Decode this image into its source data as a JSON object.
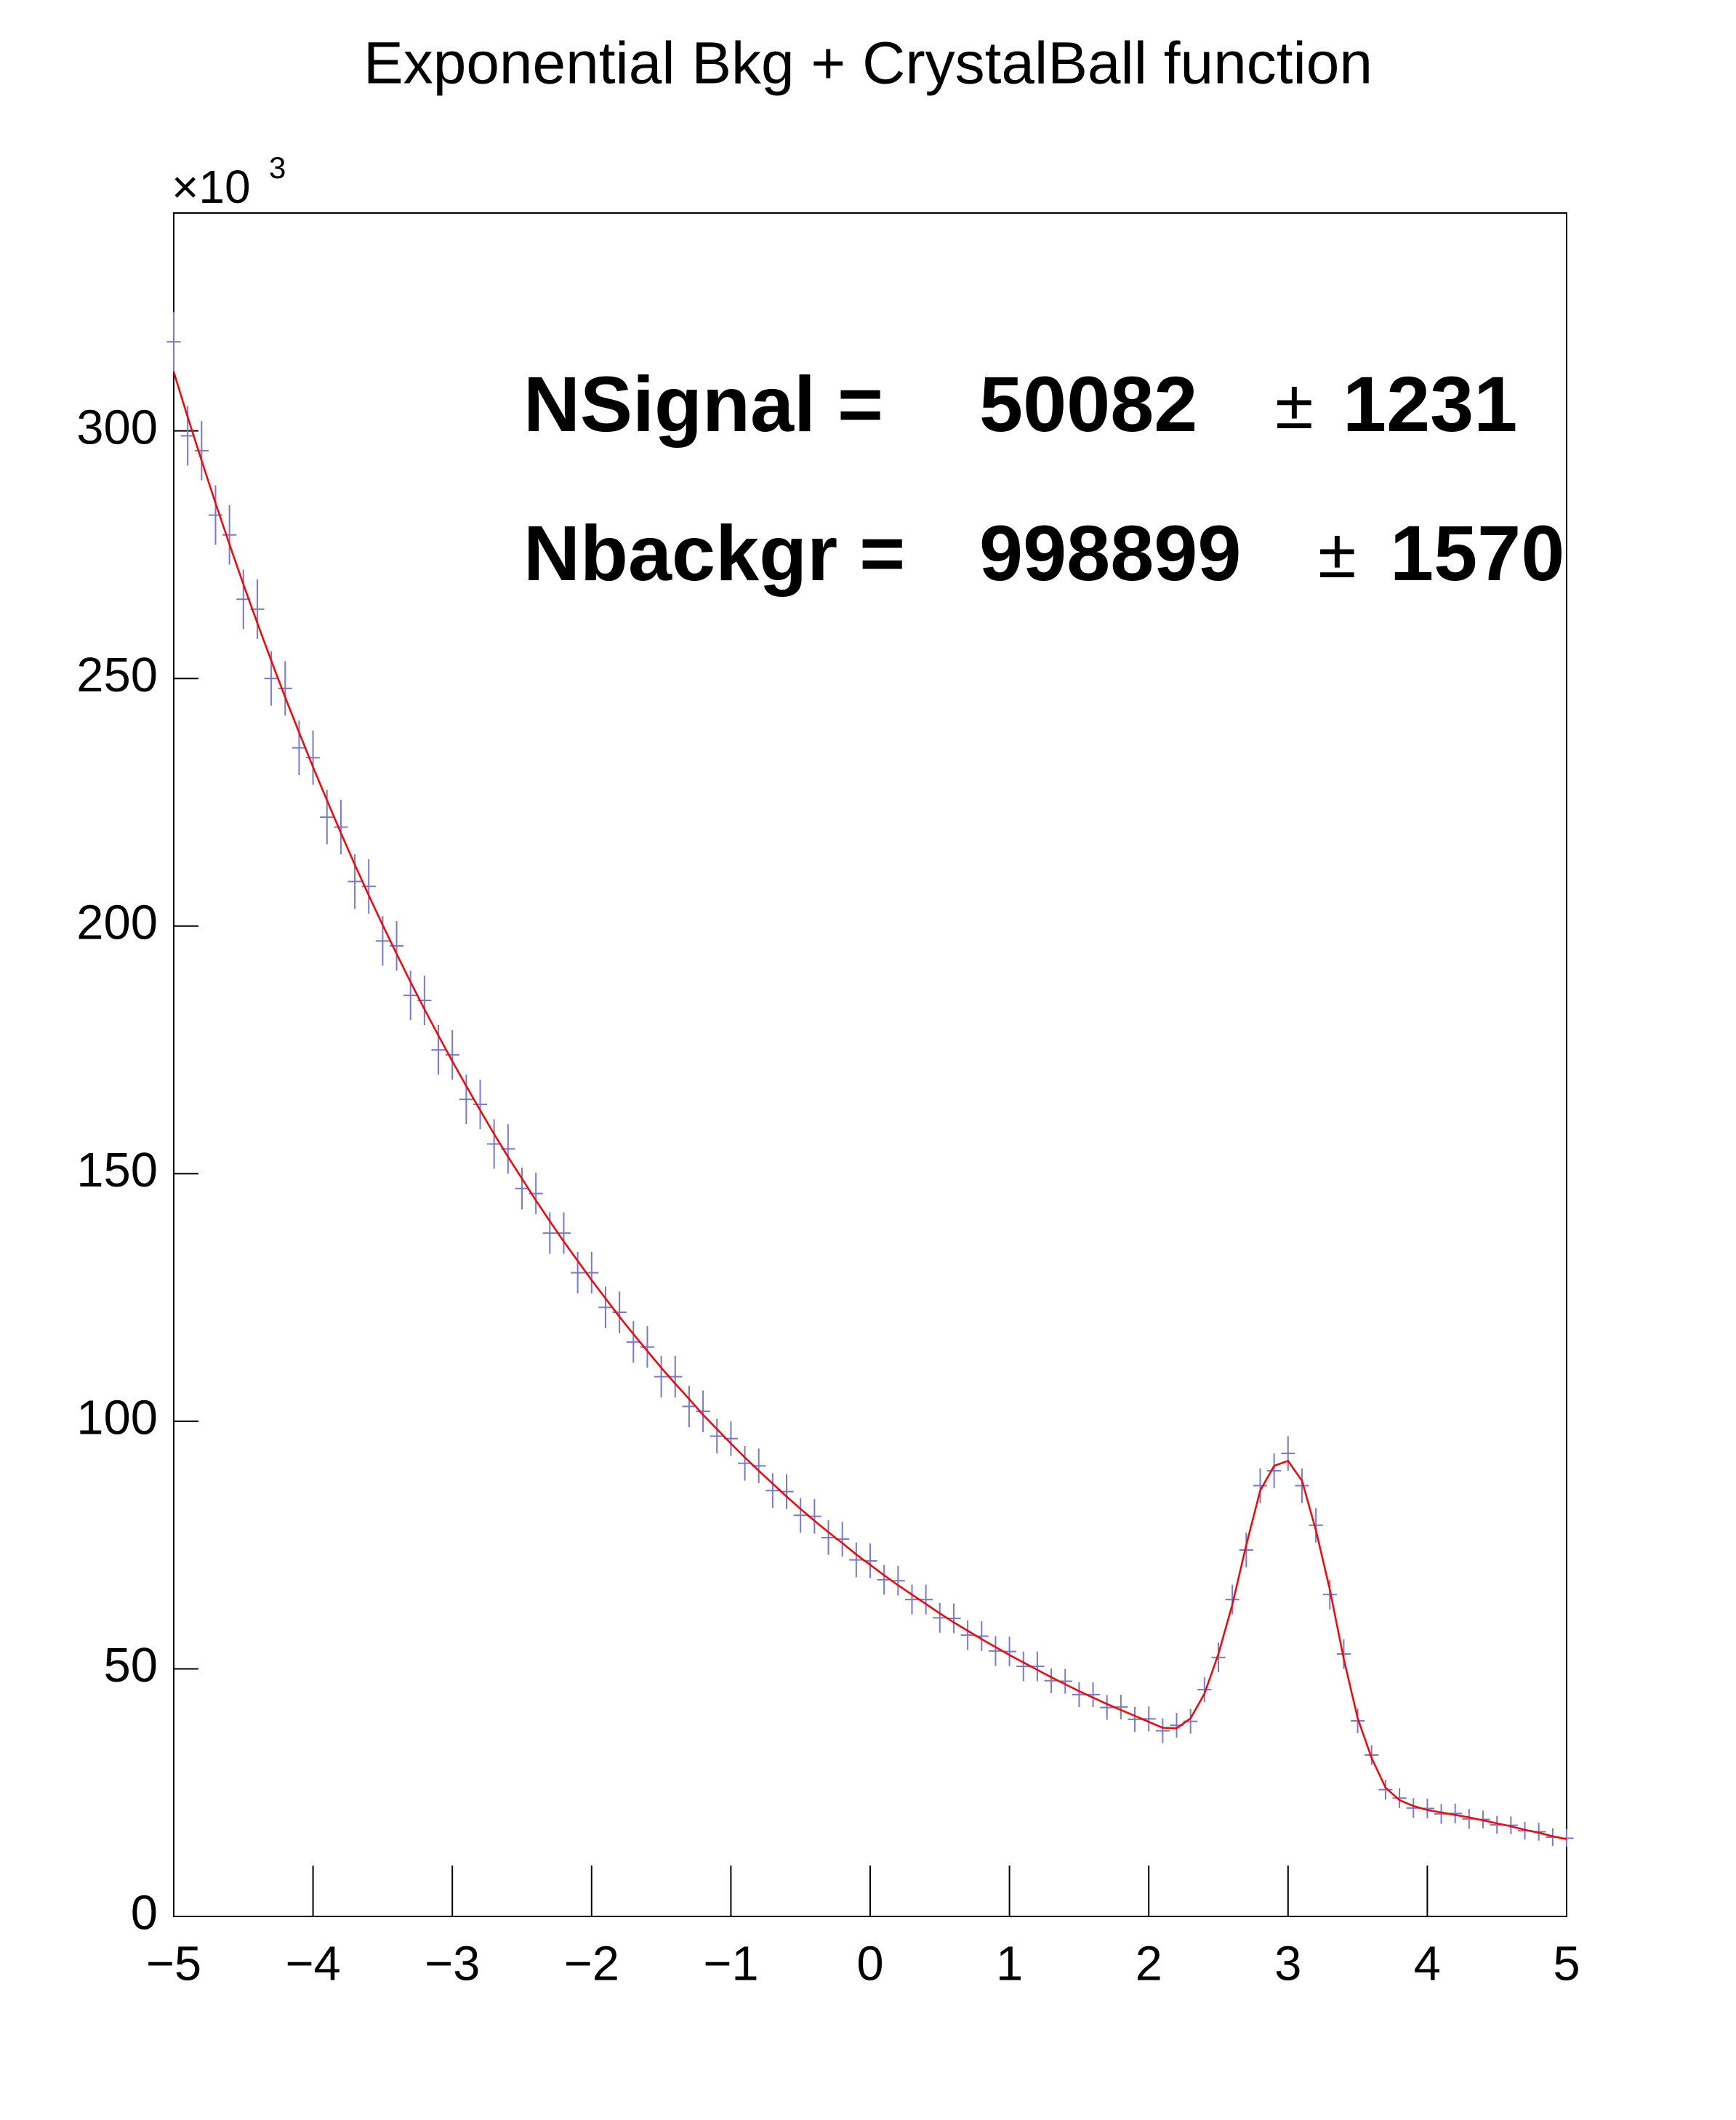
{
  "chart_data": {
    "type": "line",
    "title": "Exponential Bkg + CrystalBall function",
    "y_multiplier": {
      "base": "×10",
      "power": "3"
    },
    "x": [
      -5.0,
      -4.9,
      -4.8,
      -4.7,
      -4.6,
      -4.5,
      -4.4,
      -4.3,
      -4.2,
      -4.1,
      -4.0,
      -3.9,
      -3.8,
      -3.7,
      -3.6,
      -3.5,
      -3.4,
      -3.3,
      -3.2,
      -3.1,
      -3.0,
      -2.9,
      -2.8,
      -2.7,
      -2.6,
      -2.5,
      -2.4,
      -2.3,
      -2.2,
      -2.1,
      -2.0,
      -1.9,
      -1.8,
      -1.7,
      -1.6,
      -1.5,
      -1.4,
      -1.3,
      -1.2,
      -1.1,
      -1.0,
      -0.9,
      -0.8,
      -0.7,
      -0.6,
      -0.5,
      -0.4,
      -0.3,
      -0.2,
      -0.1,
      0.0,
      0.1,
      0.2,
      0.3,
      0.4,
      0.5,
      0.6,
      0.7,
      0.8,
      0.9,
      1.0,
      1.1,
      1.2,
      1.3,
      1.4,
      1.5,
      1.6,
      1.7,
      1.8,
      1.9,
      2.0,
      2.1,
      2.2,
      2.3,
      2.4,
      2.5,
      2.6,
      2.7,
      2.8,
      2.9,
      3.0,
      3.1,
      3.2,
      3.3,
      3.4,
      3.5,
      3.6,
      3.7,
      3.8,
      3.9,
      4.0,
      4.1,
      4.2,
      4.3,
      4.4,
      4.5,
      4.6,
      4.7,
      4.8,
      4.9,
      5.0
    ],
    "series": [
      {
        "type": "errorbar",
        "color": "#7878d8",
        "values": [
          318,
          299,
          296,
          283,
          279,
          266,
          264,
          250,
          248,
          236,
          234,
          222,
          220,
          209,
          208,
          197,
          196,
          186,
          185,
          175,
          174,
          165,
          164,
          156,
          155,
          147,
          146,
          138,
          138,
          130,
          130,
          123,
          122,
          116,
          115,
          109,
          109,
          103,
          102,
          97,
          96.5,
          91.5,
          91,
          86,
          85.8,
          81,
          80.8,
          76.5,
          76.2,
          72,
          71.8,
          68,
          67.8,
          64,
          64,
          60.3,
          60.2,
          56.8,
          56.6,
          53.6,
          53.5,
          50.5,
          50.5,
          47.6,
          47.5,
          44.8,
          44.8,
          42.2,
          42.3,
          39.8,
          39.9,
          37.5,
          38.6,
          39.4,
          45.8,
          52.3,
          64,
          74,
          87,
          90,
          93.5,
          87,
          79,
          65,
          53,
          39.5,
          32.6,
          25.6,
          23.9,
          21.9,
          21.8,
          20.7,
          20.8,
          19.7,
          19.6,
          18.5,
          18.4,
          17.3,
          17.1,
          16.0,
          15.8
        ],
        "errors": [
          6,
          6,
          6,
          6,
          6,
          6,
          6,
          5.5,
          5.5,
          5.5,
          5.5,
          5.5,
          5.5,
          5.5,
          5.5,
          5,
          5,
          5,
          5,
          5,
          5,
          5,
          5,
          5,
          5,
          4.2,
          4.2,
          4.2,
          4.2,
          4.2,
          4.2,
          4.2,
          4.2,
          4.2,
          4.2,
          4.2,
          4.2,
          4.2,
          4.2,
          3.5,
          3.5,
          3.5,
          3.5,
          3.5,
          3.5,
          3.5,
          3.5,
          3.5,
          3.5,
          3.5,
          3.5,
          3,
          3,
          3,
          3,
          3,
          3,
          3,
          3,
          3,
          3,
          3,
          3,
          2.5,
          2.5,
          2.5,
          2.5,
          2.5,
          2.5,
          2.5,
          2.5,
          2.5,
          2.5,
          2.5,
          2.5,
          3,
          3,
          3.5,
          3.5,
          3.5,
          3.5,
          3.5,
          3.5,
          3,
          3,
          2.5,
          2,
          2,
          2,
          2,
          2,
          2,
          2,
          2,
          1.8,
          1.8,
          1.8,
          1.8,
          1.8,
          1.8,
          1.8
        ]
      },
      {
        "type": "line",
        "color": "#ff0000",
        "values": [
          311.9,
          302.8,
          294.0,
          285.4,
          277.1,
          269.0,
          261.2,
          253.6,
          246.2,
          239.1,
          232.1,
          225.4,
          218.8,
          212.4,
          206.2,
          200.2,
          194.4,
          188.7,
          183.2,
          177.9,
          172.7,
          167.7,
          162.8,
          158.0,
          153.4,
          149.0,
          144.6,
          140.4,
          136.3,
          132.4,
          128.5,
          124.8,
          121.1,
          117.6,
          114.2,
          110.8,
          107.6,
          104.5,
          101.3,
          98.4,
          95.5,
          92.7,
          90.0,
          87.4,
          84.8,
          82.3,
          79.9,
          77.6,
          75.4,
          73.1,
          71.0,
          68.9,
          66.9,
          65.0,
          63.1,
          61.2,
          59.4,
          57.7,
          56.0,
          54.4,
          52.8,
          51.3,
          49.8,
          48.3,
          46.9,
          45.5,
          44.2,
          42.9,
          41.7,
          40.5,
          39.3,
          38.1,
          38,
          40,
          45,
          53,
          63,
          75,
          86,
          91,
          92,
          88,
          78,
          66,
          52,
          40,
          32,
          26,
          23.5,
          22.3,
          21.5,
          21.0,
          20.5,
          20.0,
          19.4,
          18.8,
          18.2,
          17.5,
          16.9,
          16.2,
          15.6
        ]
      }
    ],
    "xlim": [
      -5,
      5
    ],
    "xticks": [
      {
        "value": -5,
        "label": "−5"
      },
      {
        "value": -4,
        "label": "−4"
      },
      {
        "value": -3,
        "label": "−3"
      },
      {
        "value": -2,
        "label": "−2"
      },
      {
        "value": -1,
        "label": "−1"
      },
      0,
      1,
      2,
      3,
      4,
      5
    ],
    "ylim": [
      0,
      344
    ],
    "yticks": [
      0,
      50,
      100,
      150,
      200,
      250,
      300
    ],
    "annotations": [
      {
        "label": "NSignal =",
        "value": 50082,
        "pm": "±",
        "error": 1231
      },
      {
        "label": "Nbackgr =",
        "value": 998899,
        "pm": "±",
        "error": 1570
      }
    ]
  }
}
